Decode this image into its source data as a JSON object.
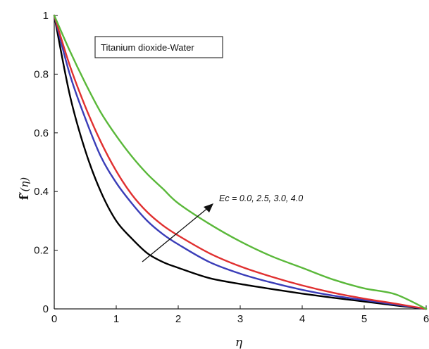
{
  "chart_data": {
    "type": "line",
    "title": "",
    "xlabel": "η",
    "ylabel_main": "f′",
    "ylabel_arg": "(η)",
    "xlim": [
      0,
      6
    ],
    "ylim": [
      0,
      1
    ],
    "x_ticks": [
      "0",
      "1",
      "2",
      "3",
      "4",
      "5",
      "6"
    ],
    "y_ticks": [
      "0",
      "0.2",
      "0.4",
      "0.6",
      "0.8",
      "1"
    ],
    "grid": false,
    "legend": {
      "text": "Titanium dioxide-Water",
      "position": "top-left"
    },
    "annotation": "Ec = 0.0, 2.5, 3.0, 4.0",
    "series": [
      {
        "color": "#000000",
        "x": [
          0,
          0.25,
          0.5,
          0.75,
          1.0,
          1.25,
          1.5,
          1.75,
          2.0,
          2.5,
          3.0,
          3.5,
          4.0,
          4.5,
          5.0,
          5.5,
          6.0
        ],
        "y": [
          1.0,
          0.73,
          0.54,
          0.4,
          0.3,
          0.24,
          0.19,
          0.16,
          0.14,
          0.105,
          0.085,
          0.068,
          0.052,
          0.038,
          0.025,
          0.012,
          0.0
        ]
      },
      {
        "color": "#3a3db8",
        "x": [
          0,
          0.25,
          0.5,
          0.75,
          1.0,
          1.25,
          1.5,
          1.75,
          2.0,
          2.5,
          3.0,
          3.5,
          4.0,
          4.5,
          5.0,
          5.5,
          6.0
        ],
        "y": [
          1.0,
          0.8,
          0.65,
          0.52,
          0.43,
          0.36,
          0.3,
          0.255,
          0.22,
          0.16,
          0.12,
          0.09,
          0.065,
          0.045,
          0.03,
          0.015,
          0.0
        ]
      },
      {
        "color": "#e03030",
        "x": [
          0,
          0.25,
          0.5,
          0.75,
          1.0,
          1.25,
          1.5,
          1.75,
          2.0,
          2.5,
          3.0,
          3.5,
          4.0,
          4.5,
          5.0,
          5.5,
          6.0
        ],
        "y": [
          1.0,
          0.83,
          0.69,
          0.57,
          0.47,
          0.39,
          0.33,
          0.285,
          0.25,
          0.19,
          0.145,
          0.11,
          0.08,
          0.055,
          0.035,
          0.018,
          0.0
        ]
      },
      {
        "color": "#5ab83a",
        "x": [
          0,
          0.25,
          0.5,
          0.75,
          1.0,
          1.25,
          1.5,
          1.75,
          2.0,
          2.5,
          3.0,
          3.5,
          4.0,
          4.5,
          5.0,
          5.5,
          6.0
        ],
        "y": [
          1.0,
          0.88,
          0.77,
          0.67,
          0.59,
          0.52,
          0.46,
          0.41,
          0.36,
          0.29,
          0.23,
          0.18,
          0.14,
          0.1,
          0.07,
          0.05,
          0.0
        ]
      }
    ]
  }
}
